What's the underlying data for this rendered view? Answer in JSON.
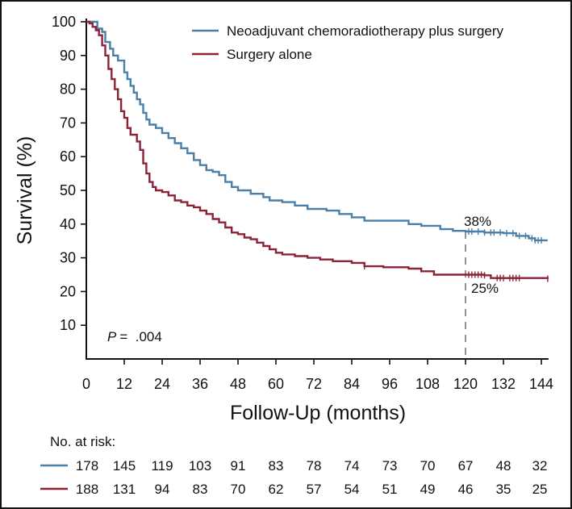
{
  "chart_data": {
    "type": "line",
    "subtype": "kaplan-meier",
    "title": "",
    "xlabel": "Follow-Up (months)",
    "ylabel": "Survival (%)",
    "xlim": [
      0,
      146
    ],
    "ylim": [
      0,
      100
    ],
    "xticks": [
      0,
      12,
      24,
      36,
      48,
      60,
      72,
      84,
      96,
      108,
      120,
      132,
      144
    ],
    "xtick_labels": [
      "0",
      "12",
      "24",
      "36",
      "48",
      "60",
      "72",
      "84",
      "96",
      "108",
      "120",
      "132",
      "144"
    ],
    "yticks": [
      10,
      20,
      30,
      40,
      50,
      60,
      70,
      80,
      90,
      100
    ],
    "ytick_labels": [
      "10",
      "20",
      "30",
      "40",
      "50",
      "60",
      "70",
      "80",
      "90",
      "100"
    ],
    "grid": false,
    "legend_position": "top-right",
    "series": [
      {
        "name": "Neoadjuvant chemoradiotherapy plus surgery",
        "color": "#4a7fa8",
        "x": [
          0,
          3,
          3.5,
          5,
          6,
          7.5,
          8.5,
          10,
          12,
          13,
          14,
          15,
          16,
          17,
          18,
          19,
          20,
          22,
          24,
          26,
          28,
          30,
          32,
          34,
          36,
          38,
          40,
          42,
          44,
          46,
          48,
          52,
          56,
          58,
          62,
          66,
          70,
          76,
          80,
          84,
          88,
          96,
          102,
          106,
          112,
          116,
          120,
          126,
          132,
          136,
          140,
          142,
          146
        ],
        "y": [
          100,
          100,
          98,
          97,
          94,
          92,
          90,
          88.5,
          85,
          83,
          81,
          79,
          77,
          75.5,
          73,
          71,
          69.5,
          68.5,
          67,
          65.5,
          64,
          62.5,
          61,
          59,
          57.5,
          56,
          55.5,
          54.5,
          52.5,
          51,
          50,
          49,
          48,
          47,
          46.5,
          45.5,
          44.5,
          44,
          43,
          42,
          41,
          41,
          40,
          39.5,
          38.5,
          38,
          37.8,
          37.5,
          37.3,
          36.5,
          35.8,
          35.2,
          35.2
        ],
        "censor_x": [
          121,
          122,
          124,
          126,
          128,
          129,
          131,
          133,
          135,
          137,
          139,
          141,
          142,
          143,
          144
        ]
      },
      {
        "name": "Surgery alone",
        "color": "#8c2238",
        "x": [
          0,
          1,
          2,
          3,
          4,
          5,
          6,
          7,
          8,
          9,
          10,
          11,
          12,
          13,
          14,
          16,
          17,
          18,
          19,
          20,
          21,
          22,
          24,
          26,
          28,
          30,
          32,
          34,
          36,
          38,
          40,
          42,
          44,
          46,
          48,
          50,
          52,
          54,
          56,
          58,
          60,
          62,
          66,
          70,
          74,
          78,
          84,
          88,
          94,
          102,
          106,
          110,
          120,
          126,
          128,
          146
        ],
        "y": [
          100,
          99.5,
          98.5,
          97.5,
          96,
          93,
          90,
          86,
          83,
          80,
          77,
          73.5,
          71.5,
          68.5,
          66.5,
          64.5,
          62,
          58,
          55,
          52.5,
          51,
          50,
          49.5,
          48.5,
          47,
          46.5,
          45.5,
          45,
          44,
          43,
          41.5,
          40.5,
          39,
          37.5,
          37,
          36,
          35.5,
          34.5,
          33.5,
          32.5,
          31.5,
          31,
          30.5,
          30,
          29.5,
          29,
          28.5,
          27.5,
          27.2,
          26.8,
          26,
          25,
          25,
          24.8,
          24,
          23.8
        ],
        "censor_x": [
          88,
          121,
          122,
          123,
          124,
          125,
          126,
          130,
          131,
          132,
          134,
          135,
          136,
          137,
          146
        ]
      }
    ],
    "annotations": [
      {
        "text": "P =  .004",
        "p_label": "P",
        "p_value": "=  .004",
        "x": 6,
        "y": 7
      },
      {
        "text": "38%",
        "x": 120,
        "y": 38
      },
      {
        "text": "25%",
        "x": 120,
        "y": 25
      }
    ],
    "reference_line": {
      "x": 120,
      "y_from": 0,
      "y_to": 37.8,
      "style": "dashed",
      "color": "#888888"
    },
    "risk_table": {
      "title": "No. at risk:",
      "rows": [
        {
          "series": "Neoadjuvant chemoradiotherapy plus surgery",
          "color": "#4a7fa8",
          "values": [
            "178",
            "145",
            "119",
            "103",
            "91",
            "83",
            "78",
            "74",
            "73",
            "70",
            "67",
            "48",
            "32"
          ]
        },
        {
          "series": "Surgery alone",
          "color": "#8c2238",
          "values": [
            "188",
            "131",
            "94",
            "83",
            "70",
            "62",
            "57",
            "54",
            "51",
            "49",
            "46",
            "35",
            "25"
          ]
        }
      ]
    }
  }
}
